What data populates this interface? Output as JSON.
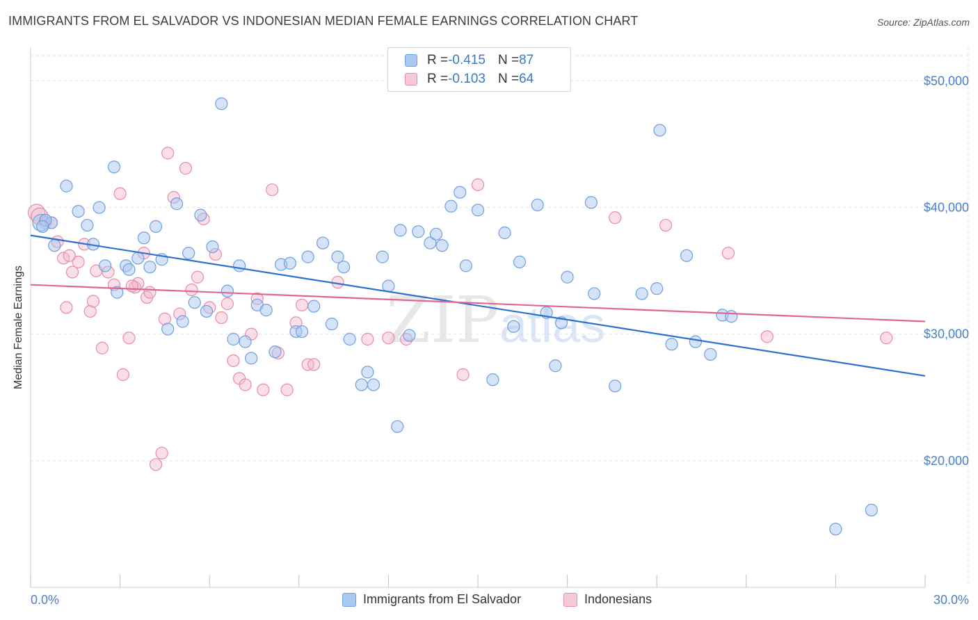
{
  "title": "IMMIGRANTS FROM EL SALVADOR VS INDONESIAN MEDIAN FEMALE EARNINGS CORRELATION CHART",
  "source": "Source: ZipAtlas.com",
  "watermark": {
    "zip": "ZIP",
    "atlas": "atlas"
  },
  "colors": {
    "blue_fill": "#aac8ef",
    "blue_stroke": "#6e9fde",
    "blue_line": "#2a6fd1",
    "pink_fill": "#f5b8cb",
    "pink_stroke": "#e98aa8",
    "pink_line": "#e06690",
    "axis_text": "#4a7fc8",
    "grid": "#e3e3e3"
  },
  "legend": {
    "rows": [
      {
        "r_label": "R = ",
        "r_value": "-0.415",
        "n_label": "N = ",
        "n_value": "87"
      },
      {
        "r_label": "R = ",
        "r_value": "-0.103",
        "n_label": "N = ",
        "n_value": "64"
      }
    ]
  },
  "bottom_legend": [
    "Immigrants from El Salvador",
    "Indonesians"
  ],
  "chart_data": {
    "type": "scatter",
    "title": "IMMIGRANTS FROM EL SALVADOR VS INDONESIAN MEDIAN FEMALE EARNINGS CORRELATION CHART",
    "xlabel": "",
    "ylabel": "Median Female Earnings",
    "xlim": [
      0,
      30
    ],
    "ylim": [
      10000,
      52000
    ],
    "x_tick_labels": [
      "0.0%",
      "30.0%"
    ],
    "y_ticks": [
      20000,
      30000,
      40000,
      50000
    ],
    "y_tick_labels": [
      "$20,000",
      "$30,000",
      "$40,000",
      "$50,000"
    ],
    "grid": true,
    "legend_position": "top-center",
    "series": [
      {
        "name": "Immigrants from El Salvador",
        "stats": {
          "R": -0.415,
          "N": 87
        },
        "trend": {
          "x": [
            0,
            30
          ],
          "y": [
            37800,
            26700
          ]
        },
        "points": [
          [
            0.35,
            38800
          ],
          [
            0.7,
            38800
          ],
          [
            0.5,
            39000
          ],
          [
            1.2,
            41700
          ],
          [
            0.8,
            37000
          ],
          [
            1.6,
            39700
          ],
          [
            1.9,
            38600
          ],
          [
            2.1,
            37100
          ],
          [
            2.3,
            40000
          ],
          [
            2.5,
            35400
          ],
          [
            2.8,
            43200
          ],
          [
            2.9,
            33300
          ],
          [
            3.2,
            35400
          ],
          [
            3.3,
            35100
          ],
          [
            3.6,
            36000
          ],
          [
            3.8,
            37600
          ],
          [
            4.0,
            35300
          ],
          [
            4.2,
            38500
          ],
          [
            4.4,
            35900
          ],
          [
            4.6,
            30400
          ],
          [
            4.9,
            40300
          ],
          [
            5.1,
            31000
          ],
          [
            5.3,
            36400
          ],
          [
            5.5,
            32500
          ],
          [
            5.7,
            39400
          ],
          [
            5.9,
            31800
          ],
          [
            6.1,
            36900
          ],
          [
            6.4,
            48200
          ],
          [
            6.6,
            33400
          ],
          [
            6.8,
            29600
          ],
          [
            7.0,
            35400
          ],
          [
            7.2,
            29400
          ],
          [
            7.4,
            28100
          ],
          [
            7.6,
            32300
          ],
          [
            7.9,
            31900
          ],
          [
            8.2,
            28600
          ],
          [
            8.4,
            35500
          ],
          [
            8.7,
            35600
          ],
          [
            8.9,
            30200
          ],
          [
            9.1,
            30200
          ],
          [
            9.3,
            36100
          ],
          [
            9.5,
            32200
          ],
          [
            9.8,
            37200
          ],
          [
            10.1,
            30800
          ],
          [
            10.3,
            36100
          ],
          [
            10.5,
            35300
          ],
          [
            10.7,
            29600
          ],
          [
            11.1,
            26000
          ],
          [
            11.3,
            27000
          ],
          [
            11.5,
            26000
          ],
          [
            11.8,
            36100
          ],
          [
            12.0,
            33800
          ],
          [
            12.3,
            22700
          ],
          [
            12.4,
            38200
          ],
          [
            12.7,
            29900
          ],
          [
            13.0,
            38100
          ],
          [
            13.4,
            37200
          ],
          [
            13.6,
            37900
          ],
          [
            13.8,
            37000
          ],
          [
            14.1,
            40100
          ],
          [
            14.4,
            41200
          ],
          [
            14.6,
            35400
          ],
          [
            15.0,
            39800
          ],
          [
            15.5,
            26400
          ],
          [
            15.9,
            38000
          ],
          [
            16.2,
            30600
          ],
          [
            16.4,
            35700
          ],
          [
            17.0,
            40200
          ],
          [
            17.3,
            31700
          ],
          [
            17.6,
            27500
          ],
          [
            17.8,
            30900
          ],
          [
            18.0,
            34500
          ],
          [
            18.8,
            40400
          ],
          [
            18.9,
            33200
          ],
          [
            19.6,
            25900
          ],
          [
            20.5,
            33200
          ],
          [
            21.0,
            33600
          ],
          [
            21.1,
            46100
          ],
          [
            21.5,
            29200
          ],
          [
            22.0,
            36200
          ],
          [
            22.3,
            29400
          ],
          [
            22.8,
            28400
          ],
          [
            23.2,
            31500
          ],
          [
            23.5,
            31400
          ],
          [
            27.0,
            14600
          ],
          [
            28.2,
            16100
          ],
          [
            0.4,
            38500
          ]
        ]
      },
      {
        "name": "Indonesians",
        "stats": {
          "R": -0.103,
          "N": 64
        },
        "trend": {
          "x": [
            0,
            30
          ],
          "y": [
            33900,
            31000
          ]
        },
        "points": [
          [
            0.2,
            39600
          ],
          [
            0.3,
            39300
          ],
          [
            0.5,
            38800
          ],
          [
            0.7,
            38800
          ],
          [
            0.9,
            37300
          ],
          [
            1.1,
            36000
          ],
          [
            1.2,
            32100
          ],
          [
            1.4,
            34900
          ],
          [
            1.6,
            35700
          ],
          [
            1.8,
            37100
          ],
          [
            2.0,
            31800
          ],
          [
            2.1,
            32600
          ],
          [
            2.4,
            28900
          ],
          [
            2.6,
            34900
          ],
          [
            2.8,
            33900
          ],
          [
            3.0,
            41100
          ],
          [
            3.1,
            26800
          ],
          [
            3.3,
            29700
          ],
          [
            3.5,
            33700
          ],
          [
            3.6,
            34000
          ],
          [
            3.8,
            36400
          ],
          [
            3.9,
            32900
          ],
          [
            4.0,
            33300
          ],
          [
            4.2,
            19700
          ],
          [
            4.4,
            20600
          ],
          [
            4.5,
            31200
          ],
          [
            4.6,
            44300
          ],
          [
            4.8,
            40800
          ],
          [
            5.0,
            31600
          ],
          [
            5.2,
            43100
          ],
          [
            5.4,
            33500
          ],
          [
            5.6,
            34500
          ],
          [
            5.8,
            39100
          ],
          [
            6.0,
            32100
          ],
          [
            6.2,
            36300
          ],
          [
            6.4,
            31300
          ],
          [
            6.6,
            32400
          ],
          [
            6.8,
            27900
          ],
          [
            7.0,
            26500
          ],
          [
            7.2,
            26000
          ],
          [
            7.4,
            30000
          ],
          [
            7.6,
            32800
          ],
          [
            7.8,
            25600
          ],
          [
            8.1,
            41400
          ],
          [
            8.3,
            28500
          ],
          [
            8.6,
            25600
          ],
          [
            8.9,
            30900
          ],
          [
            9.1,
            32300
          ],
          [
            9.3,
            27600
          ],
          [
            9.5,
            27600
          ],
          [
            10.3,
            34100
          ],
          [
            11.3,
            29600
          ],
          [
            12.0,
            29700
          ],
          [
            12.6,
            29600
          ],
          [
            14.5,
            26800
          ],
          [
            15.0,
            41800
          ],
          [
            19.6,
            39200
          ],
          [
            21.3,
            38600
          ],
          [
            23.4,
            36400
          ],
          [
            24.7,
            29800
          ],
          [
            28.7,
            29700
          ],
          [
            1.3,
            36200
          ],
          [
            2.2,
            35000
          ],
          [
            3.4,
            33800
          ]
        ]
      }
    ]
  }
}
